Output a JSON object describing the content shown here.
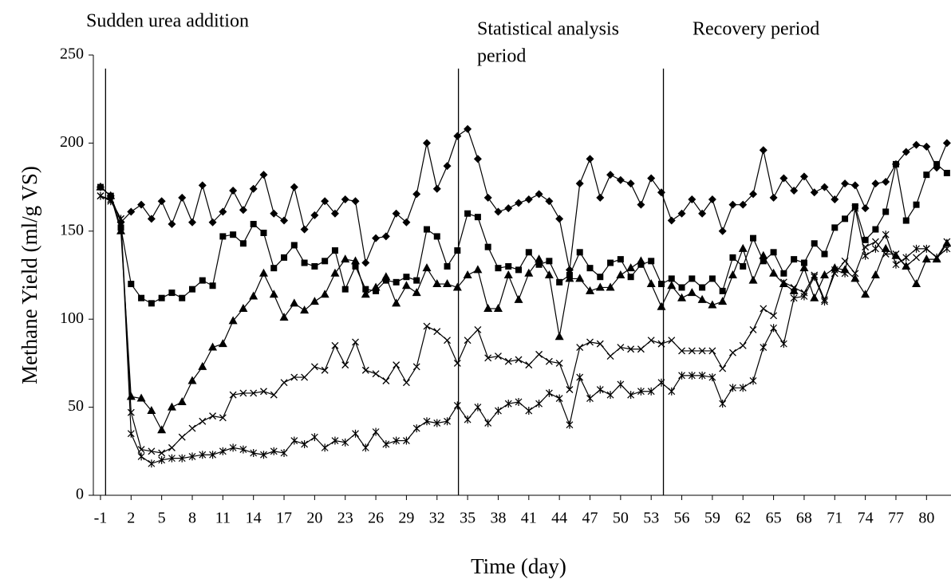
{
  "chart_data": {
    "type": "line",
    "annotations": [
      [
        "Sudden urea addition"
      ],
      [
        "Statistical analysis",
        "period"
      ],
      [
        "Recovery period"
      ]
    ],
    "event_lines": [
      -0.5,
      34.1,
      54.2
    ],
    "xlabel": "Time (day)",
    "ylabel": "Methane Yield (ml/g VS)",
    "xlim": [
      -1.7,
      82.4
    ],
    "ylim": [
      0,
      250
    ],
    "xticks": [
      -1,
      2,
      5,
      8,
      11,
      14,
      17,
      20,
      23,
      26,
      29,
      32,
      35,
      38,
      41,
      44,
      47,
      50,
      53,
      56,
      59,
      62,
      65,
      68,
      71,
      74,
      77,
      80
    ],
    "yticks": [
      0,
      50,
      100,
      150,
      200,
      250
    ],
    "x": [
      -1,
      0,
      1,
      2,
      3,
      4,
      5,
      6,
      7,
      8,
      9,
      10,
      11,
      12,
      13,
      14,
      15,
      16,
      17,
      18,
      19,
      20,
      21,
      22,
      23,
      24,
      25,
      26,
      27,
      28,
      29,
      30,
      31,
      32,
      33,
      34,
      35,
      36,
      37,
      38,
      39,
      40,
      41,
      42,
      43,
      44,
      45,
      46,
      47,
      48,
      49,
      50,
      51,
      52,
      53,
      54,
      55,
      56,
      57,
      58,
      59,
      60,
      61,
      62,
      63,
      64,
      65,
      66,
      67,
      68,
      69,
      70,
      71,
      72,
      73,
      74,
      75,
      76,
      77,
      78,
      79,
      80,
      81,
      82
    ],
    "series": [
      {
        "marker": "diamond",
        "color": "#000000",
        "values": [
          175,
          170,
          155,
          161,
          165,
          157,
          167,
          154,
          169,
          155,
          176,
          155,
          161,
          173,
          162,
          174,
          182,
          160,
          156,
          175,
          151,
          159,
          167,
          160,
          168,
          167,
          132,
          146,
          147,
          160,
          155,
          171,
          200,
          174,
          187,
          204,
          208,
          191,
          169,
          161,
          163,
          166,
          168,
          171,
          167,
          157,
          128,
          177,
          191,
          169,
          182,
          179,
          177,
          165,
          180,
          172,
          156,
          160,
          168,
          160,
          168,
          150,
          165,
          165,
          171,
          196,
          169,
          180,
          173,
          181,
          172,
          175,
          168,
          177,
          176,
          163,
          177,
          178,
          188,
          195,
          199,
          198,
          186,
          200
        ]
      },
      {
        "marker": "square",
        "color": "#000000",
        "values": [
          175,
          170,
          152,
          120,
          112,
          109,
          112,
          115,
          112,
          117,
          122,
          119,
          147,
          148,
          143,
          154,
          149,
          129,
          135,
          142,
          132,
          130,
          133,
          139,
          117,
          130,
          117,
          116,
          122,
          121,
          124,
          122,
          151,
          147,
          130,
          139,
          160,
          158,
          141,
          129,
          130,
          128,
          138,
          131,
          133,
          121,
          125,
          138,
          129,
          124,
          132,
          134,
          124,
          131,
          133,
          120,
          123,
          118,
          123,
          118,
          123,
          116,
          135,
          130,
          146,
          133,
          138,
          126,
          134,
          132,
          143,
          137,
          152,
          157,
          164,
          145,
          151,
          161,
          188,
          156,
          165,
          182,
          188,
          183
        ]
      },
      {
        "marker": "triangle",
        "color": "#000000",
        "values": [
          175,
          170,
          150,
          56,
          55,
          48,
          37,
          50,
          53,
          65,
          73,
          84,
          86,
          99,
          106,
          113,
          126,
          114,
          101,
          109,
          105,
          110,
          114,
          126,
          134,
          133,
          114,
          118,
          124,
          109,
          119,
          115,
          129,
          120,
          120,
          118,
          125,
          128,
          106,
          106,
          125,
          111,
          126,
          134,
          125,
          90,
          123,
          123,
          116,
          118,
          118,
          125,
          129,
          133,
          120,
          107,
          119,
          112,
          115,
          111,
          108,
          110,
          125,
          140,
          122,
          136,
          126,
          120,
          116,
          129,
          112,
          125,
          129,
          128,
          123,
          114,
          125,
          140,
          136,
          130,
          120,
          134,
          134,
          143
        ]
      },
      {
        "marker": "cross",
        "color": "#000000",
        "values": [
          170,
          168,
          157,
          47,
          26,
          25,
          24,
          27,
          33,
          38,
          42,
          45,
          44,
          57,
          58,
          58,
          59,
          57,
          64,
          67,
          67,
          73,
          71,
          85,
          74,
          87,
          71,
          69,
          65,
          74,
          64,
          73,
          96,
          93,
          88,
          75,
          88,
          94,
          78,
          79,
          76,
          77,
          74,
          80,
          76,
          75,
          60,
          84,
          87,
          86,
          79,
          84,
          83,
          83,
          88,
          86,
          88,
          82,
          82,
          82,
          82,
          72,
          81,
          85,
          94,
          106,
          102,
          121,
          118,
          115,
          125,
          111,
          126,
          133,
          126,
          141,
          144,
          137,
          137,
          130,
          135,
          140,
          135,
          144
        ]
      },
      {
        "marker": "star",
        "color": "#000000",
        "values": [
          170,
          167,
          157,
          35,
          22,
          18,
          20,
          21,
          21,
          22,
          23,
          23,
          25,
          27,
          26,
          24,
          23,
          25,
          24,
          31,
          29,
          33,
          27,
          31,
          30,
          35,
          27,
          36,
          29,
          31,
          31,
          38,
          42,
          41,
          42,
          51,
          43,
          50,
          41,
          48,
          52,
          53,
          48,
          52,
          58,
          55,
          40,
          67,
          55,
          60,
          57,
          63,
          57,
          59,
          59,
          64,
          59,
          68,
          68,
          68,
          67,
          52,
          61,
          61,
          65,
          84,
          95,
          86,
          112,
          113,
          124,
          110,
          128,
          126,
          163,
          136,
          140,
          148,
          131,
          135,
          140,
          140,
          135,
          140
        ]
      }
    ]
  }
}
